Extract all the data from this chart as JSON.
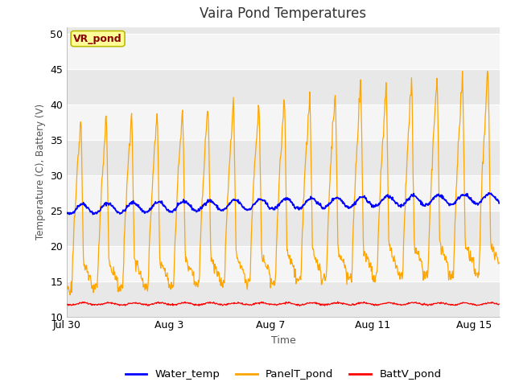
{
  "title": "Vaira Pond Temperatures",
  "xlabel": "Time",
  "ylabel": "Temperature (C), Battery (V)",
  "ylim": [
    10,
    51
  ],
  "yticks": [
    10,
    15,
    20,
    25,
    30,
    35,
    40,
    45,
    50
  ],
  "annotation_text": "VR_pond",
  "annotation_bg": "#FFFF99",
  "annotation_border": "#BBBB00",
  "annotation_text_color": "#8B0000",
  "fig_bg_color": "#FFFFFF",
  "plot_bg_color": "#E8E8E8",
  "plot_bg_light": "#F0F0F0",
  "water_temp_color": "#0000FF",
  "panel_temp_color": "#FFA500",
  "batt_color": "#FF0000",
  "legend_labels": [
    "Water_temp",
    "PanelT_pond",
    "BattV_pond"
  ],
  "num_days": 17,
  "samples_per_day": 48,
  "tick_days": [
    0,
    4,
    8,
    12,
    16
  ],
  "tick_labels": [
    "Jul 30",
    "Aug 3",
    "Aug 7",
    "Aug 11",
    "Aug 15"
  ]
}
